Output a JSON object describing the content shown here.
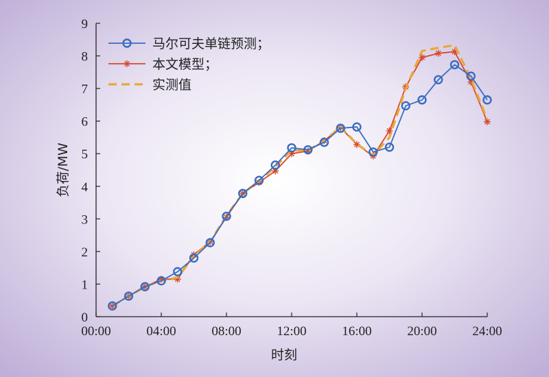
{
  "chart_data": {
    "type": "line",
    "title": "",
    "xlabel": "时刻",
    "ylabel": "负荷/MW",
    "xlim": [
      0,
      24
    ],
    "ylim": [
      0,
      9
    ],
    "x_ticks": [
      {
        "value": 0,
        "label": "00:00"
      },
      {
        "value": 4,
        "label": "04:00"
      },
      {
        "value": 8,
        "label": "08:00"
      },
      {
        "value": 12,
        "label": "12:00"
      },
      {
        "value": 16,
        "label": "16:00"
      },
      {
        "value": 20,
        "label": "20:00"
      },
      {
        "value": 24,
        "label": "24:00"
      }
    ],
    "y_ticks": [
      0,
      1,
      2,
      3,
      4,
      5,
      6,
      7,
      8,
      9
    ],
    "grid": false,
    "legend_position": "top-left",
    "x": [
      1,
      2,
      3,
      4,
      5,
      6,
      7,
      8,
      9,
      10,
      11,
      12,
      13,
      14,
      15,
      16,
      17,
      18,
      19,
      20,
      21,
      22,
      23,
      24
    ],
    "series": [
      {
        "name": "马尔可夫单链预测；",
        "color": "#3a6cc0",
        "marker": "circle",
        "values": [
          0.33,
          0.63,
          0.92,
          1.1,
          1.38,
          1.8,
          2.27,
          3.08,
          3.78,
          4.18,
          4.65,
          5.18,
          5.12,
          5.35,
          5.78,
          5.82,
          5.05,
          5.2,
          6.47,
          6.65,
          7.27,
          7.73,
          7.38,
          6.65
        ]
      },
      {
        "name": "本文模型；",
        "color": "#d9472b",
        "marker": "asterisk",
        "values": [
          0.33,
          0.63,
          0.92,
          1.15,
          1.15,
          1.9,
          2.3,
          3.05,
          3.78,
          4.12,
          4.47,
          5.0,
          5.08,
          5.4,
          5.8,
          5.28,
          4.93,
          5.7,
          7.05,
          7.95,
          8.08,
          8.13,
          7.2,
          5.98
        ]
      },
      {
        "name": "实测值",
        "color": "#e8a838",
        "marker": "none",
        "dashed": true,
        "values": [
          0.33,
          0.63,
          0.92,
          1.1,
          1.2,
          1.85,
          2.3,
          3.1,
          3.78,
          4.15,
          4.6,
          5.1,
          5.1,
          5.4,
          5.82,
          5.3,
          4.95,
          5.5,
          7.0,
          8.15,
          8.25,
          8.33,
          7.3,
          6.05
        ]
      }
    ]
  }
}
